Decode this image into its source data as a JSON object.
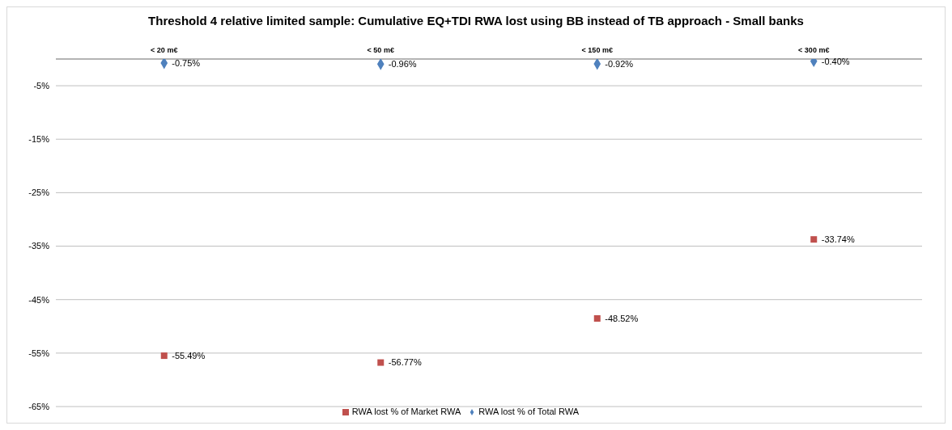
{
  "chart_data": {
    "type": "scatter",
    "title": "Threshold 4 relative limited sample: Cumulative EQ+TDI RWA lost using BB instead of TB approach - Small banks",
    "categories": [
      "< 20 m€",
      "< 50 m€",
      "< 150 m€",
      "< 300 m€"
    ],
    "series": [
      {
        "name": "RWA lost % of Total RWA",
        "color": "#4f81bd",
        "marker": "diamond",
        "values": [
          -0.75,
          -0.96,
          -0.92,
          -0.4
        ],
        "value_labels": [
          "-0.75%",
          "-0.96%",
          "-0.92%",
          "-0.40%"
        ]
      },
      {
        "name": "RWA lost % of Market RWA",
        "color": "#c0504d",
        "marker": "square",
        "values": [
          -55.49,
          -56.77,
          -48.52,
          -33.74
        ],
        "value_labels": [
          "-55.49%",
          "-56.77%",
          "-48.52%",
          "-33.74%"
        ]
      }
    ],
    "ylim": [
      -65,
      0
    ],
    "yticks": [
      {
        "value": -65,
        "label": "-65%"
      },
      {
        "value": -55,
        "label": "-55%"
      },
      {
        "value": -45,
        "label": "-45%"
      },
      {
        "value": -35,
        "label": "-35%"
      },
      {
        "value": -25,
        "label": "-25%"
      },
      {
        "value": -15,
        "label": "-15%"
      },
      {
        "value": -5,
        "label": "-5%"
      }
    ],
    "grid": "y",
    "legend": "bottom"
  }
}
